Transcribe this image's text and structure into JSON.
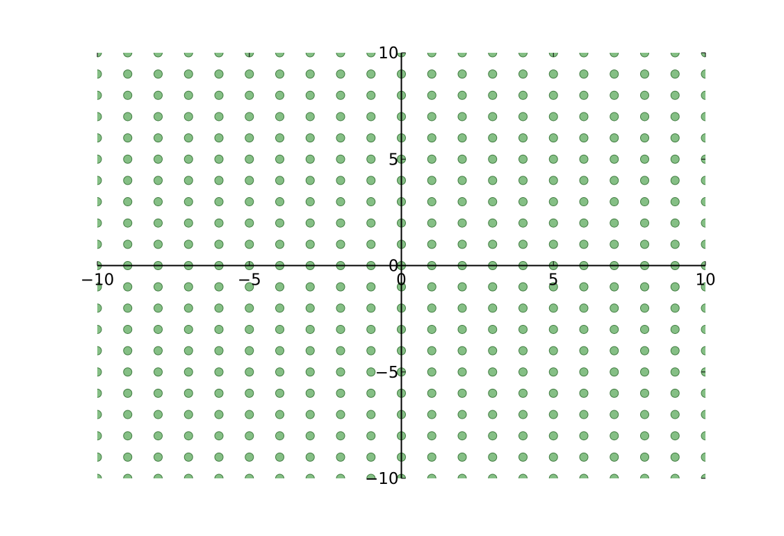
{
  "chart_data": {
    "type": "scatter",
    "title": "",
    "xlabel": "",
    "ylabel": "",
    "xlim": [
      -10,
      10
    ],
    "ylim": [
      -10,
      10
    ],
    "grid": false,
    "spines": "centered at origin",
    "x_ticks": [
      -10,
      -5,
      0,
      5,
      10
    ],
    "y_ticks": [
      -10,
      -5,
      0,
      5,
      10
    ],
    "x_tick_labels": [
      "−10",
      "−5",
      "0",
      "5",
      "10"
    ],
    "y_tick_labels": [
      "−10",
      "−5",
      "0",
      "5",
      "10"
    ],
    "series": [
      {
        "marker": "circle",
        "color": "#85bf85",
        "edge_color": "#3f7a3f",
        "x": [
          -10,
          -9,
          -8,
          -7,
          -6,
          -5,
          -4,
          -3,
          -2,
          -1,
          0,
          1,
          2,
          3,
          4,
          5,
          6,
          7,
          8,
          9,
          10
        ],
        "y": [
          -10,
          -9,
          -8,
          -7,
          -6,
          -5,
          -4,
          -3,
          -2,
          -1,
          0,
          1,
          2,
          3,
          4,
          5,
          6,
          7,
          8,
          9,
          10
        ],
        "layout": "full grid (every x paired with every y)"
      }
    ]
  }
}
